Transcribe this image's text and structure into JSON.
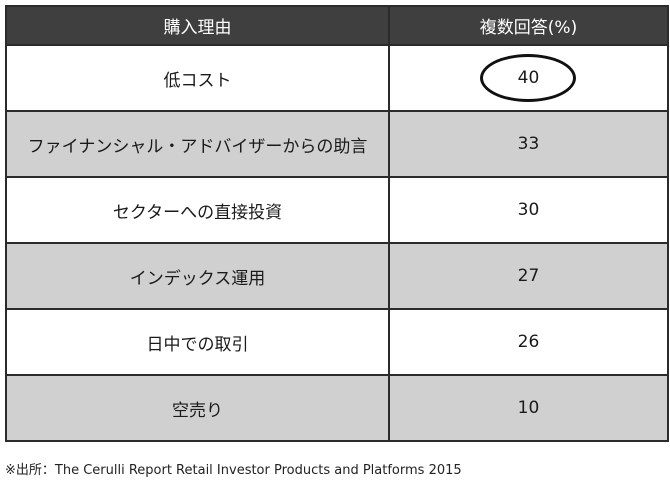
{
  "table": {
    "headers": [
      "購入理由",
      "複数回答(%)"
    ],
    "rows": [
      {
        "reason": "低コスト",
        "value": "40",
        "highlighted": true
      },
      {
        "reason": "ファイナンシャル・アドバイザーからの助言",
        "value": "33",
        "highlighted": false
      },
      {
        "reason": "セクターへの直接投資",
        "value": "30",
        "highlighted": false
      },
      {
        "reason": "インデックス運用",
        "value": "27",
        "highlighted": false
      },
      {
        "reason": "日中での取引",
        "value": "26",
        "highlighted": false
      },
      {
        "reason": "空売り",
        "value": "10",
        "highlighted": false
      }
    ]
  },
  "source": "※出所：The Cerulli Report Retail Investor Products and Platforms 2015",
  "colors": {
    "header_bg": "#3f3f3f",
    "header_text": "#ffffff",
    "shaded_row": "#d0d0d0",
    "plain_row": "#ffffff",
    "border": "#2b2b2b"
  }
}
